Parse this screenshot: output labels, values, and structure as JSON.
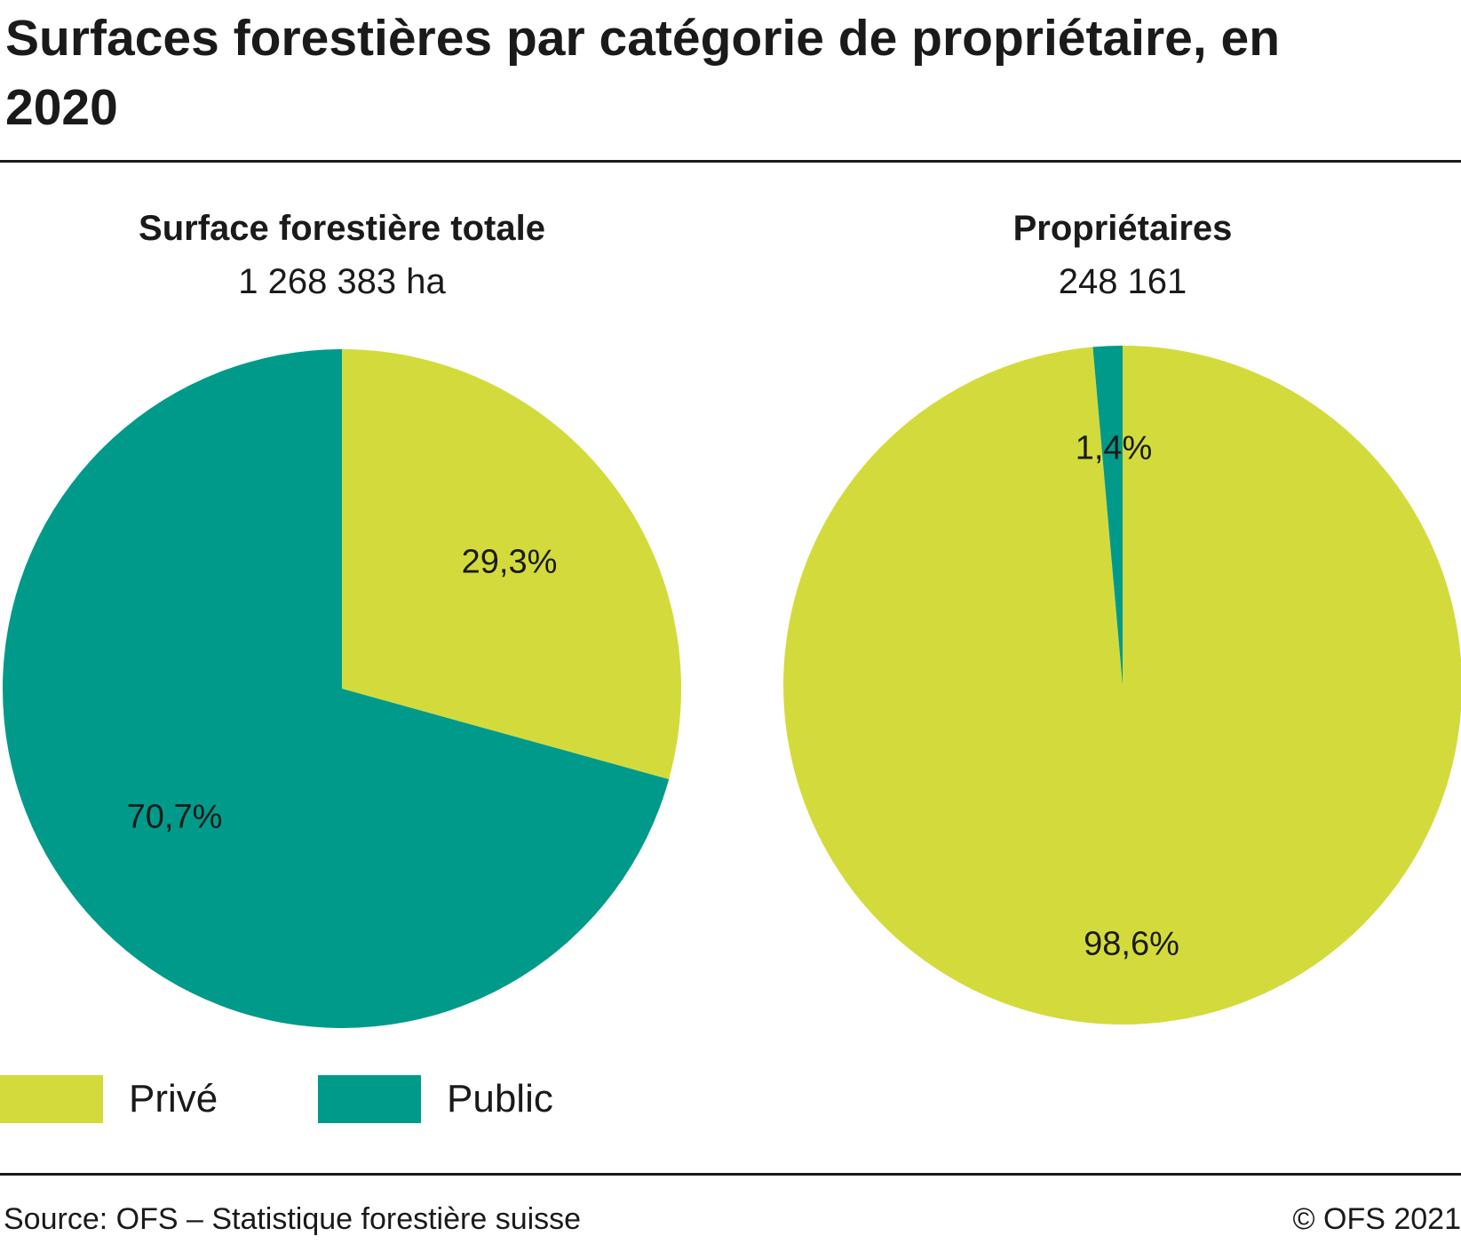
{
  "title": "Surfaces forestières par catégorie de propriétaire, en 2020",
  "colors": {
    "prive": "#d3db3c",
    "public": "#009a8a",
    "text": "#1a1a1a"
  },
  "legend": [
    {
      "label": "Privé",
      "color": "#d3db3c"
    },
    {
      "label": "Public",
      "color": "#009a8a"
    }
  ],
  "chart_data": [
    {
      "type": "pie",
      "title": "Surface forestière totale",
      "subtitle": "1 268 383 ha",
      "slices": [
        {
          "name": "Privé",
          "value": 29.3,
          "label": "29,3%",
          "color": "#d3db3c"
        },
        {
          "name": "Public",
          "value": 70.7,
          "label": "70,7%",
          "color": "#009a8a"
        }
      ]
    },
    {
      "type": "pie",
      "title": "Propriétaires",
      "subtitle": "248 161",
      "slices": [
        {
          "name": "Privé",
          "value": 98.6,
          "label": "98,6%",
          "color": "#d3db3c"
        },
        {
          "name": "Public",
          "value": 1.4,
          "label": "1,4%",
          "color": "#009a8a"
        }
      ]
    }
  ],
  "footer": {
    "source": "Source: OFS – Statistique forestière suisse",
    "copyright": "© OFS 2021"
  }
}
